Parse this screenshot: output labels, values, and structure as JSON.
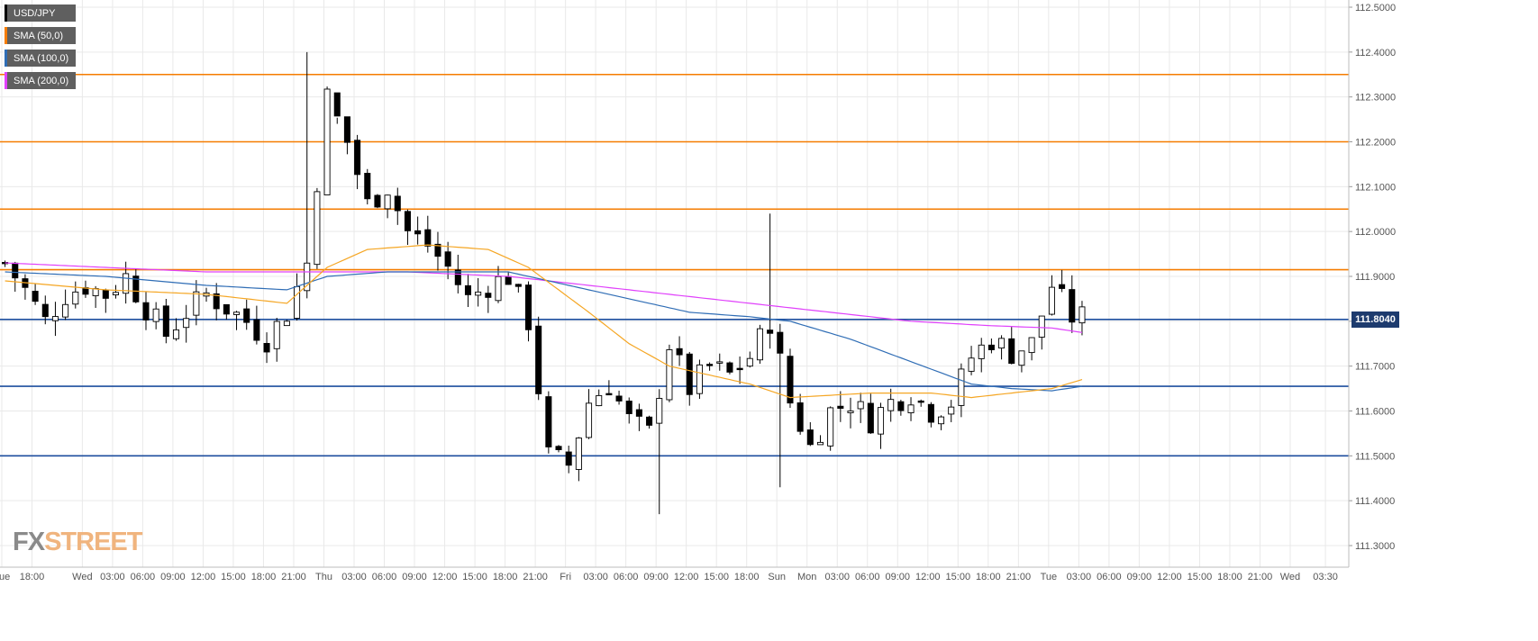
{
  "colors": {
    "background": "#ffffff",
    "grid": "#e9e9e9",
    "candle_up": "#ffffff",
    "candle_down": "#000000",
    "resistance": "#f57c00",
    "support": "#1d4e9e",
    "sma50": "#f5a623",
    "sma100": "#2f6db5",
    "sma200": "#e040fb"
  },
  "legend": [
    {
      "label": "USD/JPY",
      "color": "#000000"
    },
    {
      "label": "SMA (50,0)",
      "color": "#f57c00"
    },
    {
      "label": "SMA (100,0)",
      "color": "#2f6db5"
    },
    {
      "label": "SMA (200,0)",
      "color": "#e040fb"
    }
  ],
  "logo": {
    "part1": "FX",
    "part2": "STREET"
  },
  "current_price_label": "111.8040",
  "chart_data": {
    "type": "candlestick",
    "title": "",
    "xlabel": "",
    "ylabel": "",
    "ylim": [
      111.25,
      112.51
    ],
    "grid": true,
    "legend_position": "top-left",
    "y_ticks": [
      "112.5000",
      "112.4000",
      "112.3000",
      "112.2000",
      "112.1000",
      "112.0000",
      "111.9000",
      "111.8000",
      "111.7000",
      "111.6000",
      "111.5000",
      "111.4000",
      "111.3000"
    ],
    "x_ticks": [
      "Tue",
      "18:00",
      "Wed",
      "03:00",
      "06:00",
      "09:00",
      "12:00",
      "15:00",
      "18:00",
      "21:00",
      "Thu",
      "03:00",
      "06:00",
      "09:00",
      "12:00",
      "15:00",
      "18:00",
      "21:00",
      "Fri",
      "03:00",
      "06:00",
      "09:00",
      "12:00",
      "15:00",
      "18:00",
      "Sun",
      "Mon",
      "03:00",
      "06:00",
      "09:00",
      "12:00",
      "15:00",
      "18:00",
      "21:00",
      "Tue",
      "03:00",
      "06:00",
      "09:00",
      "12:00",
      "15:00",
      "18:00",
      "21:00",
      "Wed",
      "03:30"
    ],
    "x_tick_positions": [
      0,
      3,
      8,
      11,
      14,
      17,
      20,
      23,
      26,
      29,
      32,
      35,
      38,
      41,
      44,
      47,
      50,
      53,
      56,
      59,
      62,
      65,
      68,
      71,
      74,
      77,
      80,
      83,
      86,
      89,
      92,
      95,
      98,
      101,
      104,
      107,
      110,
      113,
      116,
      119,
      122,
      125,
      128,
      131.5
    ],
    "bar_count_visible": 134,
    "horizontal_levels": [
      {
        "value": 112.35,
        "kind": "resistance"
      },
      {
        "value": 112.2,
        "kind": "resistance"
      },
      {
        "value": 112.05,
        "kind": "resistance"
      },
      {
        "value": 111.915,
        "kind": "resistance"
      },
      {
        "value": 111.804,
        "kind": "support"
      },
      {
        "value": 111.655,
        "kind": "support"
      },
      {
        "value": 111.5,
        "kind": "support"
      }
    ],
    "close_path": [
      [
        0,
        111.93
      ],
      [
        2,
        111.87
      ],
      [
        4,
        111.8
      ],
      [
        6,
        111.86
      ],
      [
        8,
        111.88
      ],
      [
        10,
        111.86
      ],
      [
        12,
        111.9
      ],
      [
        14,
        111.83
      ],
      [
        16,
        111.77
      ],
      [
        18,
        111.82
      ],
      [
        20,
        111.86
      ],
      [
        22,
        111.83
      ],
      [
        24,
        111.8
      ],
      [
        26,
        111.76
      ],
      [
        28,
        111.82
      ],
      [
        30,
        111.93
      ],
      [
        32,
        112.3
      ],
      [
        34,
        112.2
      ],
      [
        36,
        112.06
      ],
      [
        38,
        112.1
      ],
      [
        40,
        112.0
      ],
      [
        42,
        111.97
      ],
      [
        44,
        111.92
      ],
      [
        46,
        111.85
      ],
      [
        48,
        111.88
      ],
      [
        50,
        111.9
      ],
      [
        52,
        111.8
      ],
      [
        54,
        111.5
      ],
      [
        56,
        111.48
      ],
      [
        58,
        111.62
      ],
      [
        60,
        111.66
      ],
      [
        62,
        111.58
      ],
      [
        64,
        111.55
      ],
      [
        66,
        111.75
      ],
      [
        68,
        111.65
      ],
      [
        70,
        111.7
      ],
      [
        72,
        111.68
      ],
      [
        74,
        111.72
      ],
      [
        76,
        111.8
      ],
      [
        78,
        111.62
      ],
      [
        80,
        111.52
      ],
      [
        82,
        111.6
      ],
      [
        84,
        111.62
      ],
      [
        86,
        111.58
      ],
      [
        88,
        111.62
      ],
      [
        90,
        111.64
      ],
      [
        92,
        111.6
      ],
      [
        94,
        111.62
      ],
      [
        96,
        111.72
      ],
      [
        98,
        111.76
      ],
      [
        100,
        111.73
      ],
      [
        102,
        111.75
      ],
      [
        104,
        111.88
      ],
      [
        106,
        111.81
      ],
      [
        107,
        111.81
      ]
    ],
    "spikes": [
      {
        "index": 30,
        "high": 112.4
      },
      {
        "index": 33,
        "high": 112.24
      },
      {
        "index": 76,
        "high": 112.04
      },
      {
        "index": 65,
        "low": 111.37
      },
      {
        "index": 77,
        "low": 111.43
      }
    ],
    "sma_50": [
      [
        0,
        111.89
      ],
      [
        10,
        111.87
      ],
      [
        20,
        111.86
      ],
      [
        28,
        111.84
      ],
      [
        32,
        111.92
      ],
      [
        36,
        111.96
      ],
      [
        42,
        111.97
      ],
      [
        48,
        111.96
      ],
      [
        52,
        111.92
      ],
      [
        58,
        111.82
      ],
      [
        62,
        111.75
      ],
      [
        66,
        111.7
      ],
      [
        70,
        111.68
      ],
      [
        74,
        111.66
      ],
      [
        78,
        111.63
      ],
      [
        86,
        111.64
      ],
      [
        92,
        111.64
      ],
      [
        96,
        111.63
      ],
      [
        100,
        111.64
      ],
      [
        104,
        111.65
      ],
      [
        107,
        111.67
      ]
    ],
    "sma_100": [
      [
        0,
        111.91
      ],
      [
        10,
        111.9
      ],
      [
        20,
        111.88
      ],
      [
        28,
        111.87
      ],
      [
        32,
        111.9
      ],
      [
        38,
        111.91
      ],
      [
        44,
        111.91
      ],
      [
        50,
        111.91
      ],
      [
        56,
        111.88
      ],
      [
        62,
        111.85
      ],
      [
        68,
        111.82
      ],
      [
        74,
        111.81
      ],
      [
        78,
        111.8
      ],
      [
        84,
        111.76
      ],
      [
        90,
        111.71
      ],
      [
        96,
        111.66
      ],
      [
        100,
        111.65
      ],
      [
        104,
        111.645
      ],
      [
        107,
        111.655
      ]
    ],
    "sma_200": [
      [
        0,
        111.93
      ],
      [
        10,
        111.92
      ],
      [
        20,
        111.91
      ],
      [
        30,
        111.91
      ],
      [
        40,
        111.91
      ],
      [
        50,
        111.9
      ],
      [
        58,
        111.88
      ],
      [
        66,
        111.86
      ],
      [
        74,
        111.84
      ],
      [
        82,
        111.82
      ],
      [
        90,
        111.8
      ],
      [
        98,
        111.79
      ],
      [
        104,
        111.785
      ],
      [
        107,
        111.775
      ]
    ]
  }
}
